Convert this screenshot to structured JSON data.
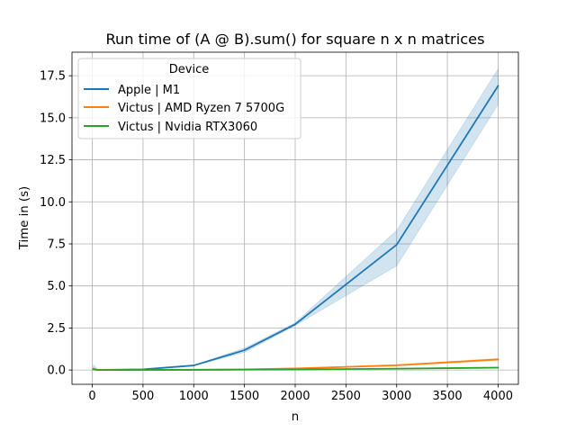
{
  "chart_data": {
    "type": "line",
    "title": "Run time of (A @ B).sum() for square n x n matrices",
    "xlabel": "n",
    "ylabel": "Time in (s)",
    "xlim": [
      -200,
      4200
    ],
    "ylim": [
      -0.85,
      18.9
    ],
    "xticks": [
      0,
      500,
      1000,
      1500,
      2000,
      2500,
      3000,
      3500,
      4000
    ],
    "xtick_labels": [
      "0",
      "500",
      "1000",
      "1500",
      "2000",
      "2500",
      "3000",
      "3500",
      "4000"
    ],
    "yticks": [
      0.0,
      2.5,
      5.0,
      7.5,
      10.0,
      12.5,
      15.0,
      17.5
    ],
    "ytick_labels": [
      "0.0",
      "2.5",
      "5.0",
      "7.5",
      "10.0",
      "12.5",
      "15.0",
      "17.5"
    ],
    "grid": true,
    "legend": {
      "title": "Device",
      "position": "top-left"
    },
    "series": [
      {
        "name": "Apple | M1",
        "color": "#1f77b4",
        "x": [
          10,
          50,
          100,
          500,
          1000,
          1500,
          2000,
          3000,
          4000
        ],
        "y": [
          0.05,
          0.01,
          0.01,
          0.04,
          0.27,
          1.18,
          2.72,
          7.45,
          16.9
        ],
        "ci_low": [
          0.0,
          0.0,
          0.0,
          0.03,
          0.25,
          1.05,
          2.65,
          6.2,
          15.8
        ],
        "ci_high": [
          0.32,
          0.03,
          0.02,
          0.05,
          0.29,
          1.3,
          2.8,
          8.3,
          17.9
        ]
      },
      {
        "name": "Victus | AMD Ryzen 7 5700G",
        "color": "#ff7f0e",
        "x": [
          10,
          50,
          100,
          500,
          1000,
          1500,
          2000,
          3000,
          4000
        ],
        "y": [
          0.08,
          0.01,
          0.01,
          0.01,
          0.02,
          0.04,
          0.09,
          0.28,
          0.63
        ],
        "ci_low": [
          0.03,
          0.0,
          0.0,
          0.0,
          0.01,
          0.03,
          0.07,
          0.24,
          0.57
        ],
        "ci_high": [
          0.14,
          0.02,
          0.02,
          0.02,
          0.03,
          0.05,
          0.11,
          0.32,
          0.69
        ]
      },
      {
        "name": "Victus | Nvidia RTX3060",
        "color": "#2ca02c",
        "x": [
          10,
          50,
          100,
          500,
          1000,
          1500,
          2000,
          3000,
          4000
        ],
        "y": [
          0.04,
          0.0,
          0.0,
          0.01,
          0.01,
          0.02,
          0.03,
          0.08,
          0.14
        ],
        "ci_low": [
          0.0,
          0.0,
          0.0,
          0.0,
          0.0,
          0.01,
          0.02,
          0.06,
          0.11
        ],
        "ci_high": [
          0.1,
          0.01,
          0.01,
          0.02,
          0.02,
          0.03,
          0.05,
          0.1,
          0.17
        ]
      }
    ]
  }
}
